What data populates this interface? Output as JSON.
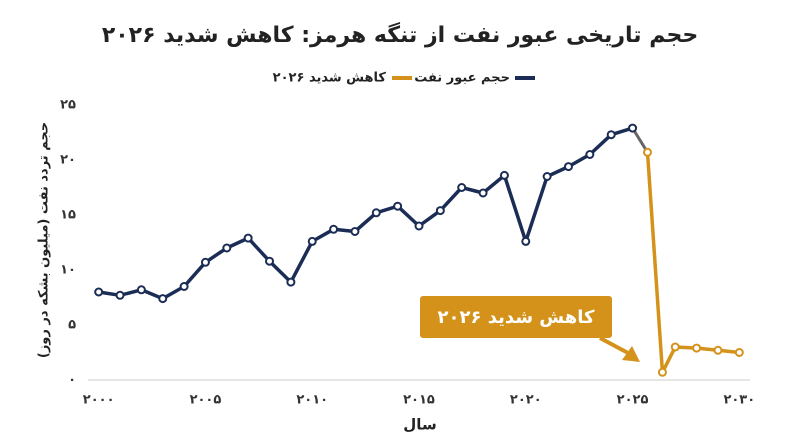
{
  "chart_data": {
    "type": "line",
    "title": "حجم تاریخی عبور نفت از تنگه هرمز: کاهش شدید ۲۰۲۶",
    "x_label": "سال",
    "y_label": "حجم تردد نفت (میلیون بشکه در روز)",
    "annotation": "کاهش شدید ۲۰۲۶",
    "xlim": [
      1999.5,
      2030.5
    ],
    "ylim": [
      0,
      25
    ],
    "xticks": [
      {
        "value": 2000,
        "label": "۲۰۰۰"
      },
      {
        "value": 2005,
        "label": "۲۰۰۵"
      },
      {
        "value": 2010,
        "label": "۲۰۱۰"
      },
      {
        "value": 2015,
        "label": "۲۰۱۵"
      },
      {
        "value": 2020,
        "label": "۲۰۲۰"
      },
      {
        "value": 2025,
        "label": "۲۰۲۵"
      },
      {
        "value": 2030,
        "label": "۲۰۳۰"
      }
    ],
    "yticks": [
      {
        "value": 0,
        "label": "۰"
      },
      {
        "value": 5,
        "label": "۵"
      },
      {
        "value": 10,
        "label": "۱۰"
      },
      {
        "value": 15,
        "label": "۱۵"
      },
      {
        "value": 20,
        "label": "۲۰"
      },
      {
        "value": 25,
        "label": "۲۵"
      }
    ],
    "grid": false,
    "series": [
      {
        "name": "حجم عبور نفت",
        "color": "#1b2d55",
        "x": [
          2000,
          2001,
          2002,
          2003,
          2004,
          2005,
          2006,
          2007,
          2008,
          2009,
          2010,
          2011,
          2012,
          2013,
          2014,
          2015,
          2016,
          2017,
          2018,
          2019,
          2020,
          2021,
          2022,
          2023,
          2024,
          2025
        ],
        "values": [
          8.0,
          7.7,
          8.2,
          7.4,
          8.5,
          10.7,
          12.0,
          12.9,
          10.8,
          8.9,
          12.6,
          13.7,
          13.5,
          15.2,
          15.8,
          14.0,
          15.4,
          17.5,
          17.0,
          18.6,
          12.6,
          18.5,
          19.4,
          20.5,
          22.3,
          22.9
        ]
      },
      {
        "name": "کاهش شدید ۲۰۲۶",
        "color": "#d4921a",
        "x": [
          2025.7,
          2026.4,
          2027,
          2028,
          2029,
          2030
        ],
        "values": [
          20.7,
          0.7,
          3.0,
          2.9,
          2.7,
          2.5
        ]
      }
    ]
  }
}
